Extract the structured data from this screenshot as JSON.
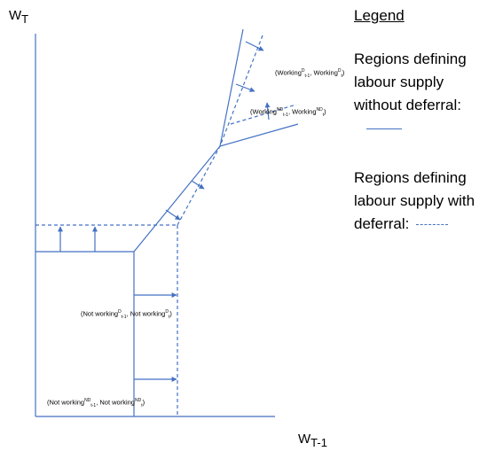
{
  "axes": {
    "y_label": "W",
    "y_sub": "T",
    "x_label": "W",
    "x_sub": "T-1"
  },
  "legend": {
    "title": "Legend",
    "entries": [
      {
        "text": "Regions defining labour supply without deferral:",
        "style": "solid"
      },
      {
        "text": "Regions defining labour supply with deferral:",
        "style": "dashed"
      }
    ]
  },
  "regions": {
    "working": {
      "open": "(Working",
      "sup1": "D",
      "sub1": "t-1",
      "mid": ", Working",
      "sup2": "D",
      "sub2": "t",
      "close": ")"
    },
    "working_nd": {
      "open": "(Working",
      "sup1": "ND",
      "sub1": "t-1",
      "mid": ", Working",
      "sup2": "ND",
      "sub2": "t",
      "close": ")"
    },
    "not_working": {
      "open": "(Not working",
      "sup1": "D",
      "sub1": "t-1",
      "mid": ", Not working",
      "sup2": "D",
      "sub2": "t",
      "close": ")"
    },
    "not_working_nd": {
      "open": "(Not working",
      "sup1": "ND",
      "sub1": "t-1",
      "mid": ", Not working",
      "sup2": "ND",
      "sub2": "t",
      "close": ")"
    }
  },
  "colors": {
    "line": "#4472c4"
  }
}
